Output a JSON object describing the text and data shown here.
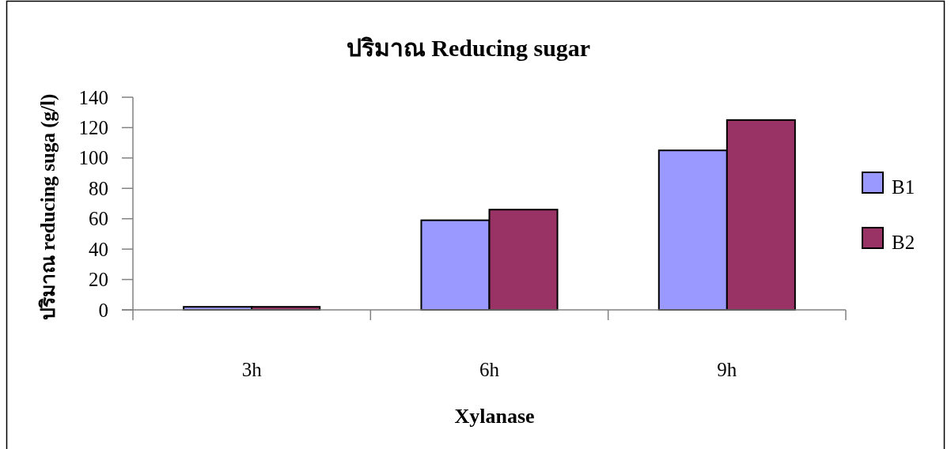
{
  "chart_data": {
    "type": "bar",
    "title": "ปริมาณ Reducing sugar",
    "xlabel": "Xylanase",
    "ylabel": "ปริมาณ reducing suga (g/l)",
    "categories": [
      "3h",
      "6h",
      "9h"
    ],
    "series": [
      {
        "name": "B1",
        "color": "#9999ff",
        "values": [
          2,
          59,
          105
        ]
      },
      {
        "name": "B2",
        "color": "#993366",
        "values": [
          2,
          66,
          125
        ]
      }
    ],
    "ylim": [
      0,
      140
    ],
    "yticks": [
      0,
      20,
      40,
      60,
      80,
      100,
      120,
      140
    ],
    "legend": "right"
  }
}
